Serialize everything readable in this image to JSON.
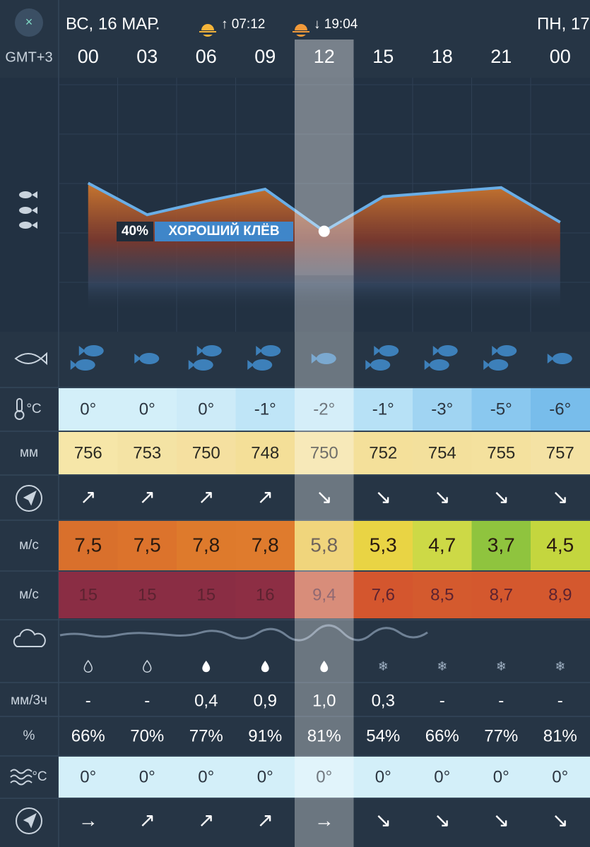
{
  "header": {
    "close": "×",
    "day": "ВС, 16 МАР.",
    "sunrise": "↑ 07:12",
    "sunset": "↓ 19:04",
    "next_day": "ПН, 17",
    "timezone": "GMT+3",
    "hours": [
      "00",
      "03",
      "06",
      "09",
      "12",
      "15",
      "18",
      "21",
      "00"
    ]
  },
  "bite": {
    "percent_label": "40%",
    "label": "ХОРОШИЙ КЛЁВ",
    "curve": [
      72,
      51,
      60,
      68,
      40,
      63,
      66,
      69,
      46
    ],
    "fish_counts": [
      2,
      1,
      2,
      2,
      1,
      2,
      2,
      2,
      1
    ]
  },
  "rows": {
    "temperature": {
      "label": "°C",
      "values": [
        "0°",
        "0°",
        "0°",
        "-1°",
        "-2°",
        "-1°",
        "-3°",
        "-5°",
        "-6°"
      ]
    },
    "pressure": {
      "label": "мм",
      "values": [
        "756",
        "753",
        "750",
        "748",
        "750",
        "752",
        "754",
        "755",
        "757"
      ]
    },
    "wind_direction": {
      "values": [
        "↗",
        "↗",
        "↗",
        "↗",
        "↘",
        "↘",
        "↘",
        "↘",
        "↘"
      ]
    },
    "wind": {
      "label": "м/с",
      "values": [
        "7,5",
        "7,5",
        "7,8",
        "7,8",
        "5,8",
        "5,3",
        "4,7",
        "3,7",
        "4,5"
      ]
    },
    "gust": {
      "label": "м/с",
      "values": [
        "15",
        "15",
        "15",
        "16",
        "9,4",
        "7,6",
        "8,5",
        "8,7",
        "8,9"
      ]
    },
    "precipitation": {
      "label": "мм/3ч",
      "values": [
        "-",
        "-",
        "0,4",
        "0,9",
        "1,0",
        "0,3",
        "-",
        "-",
        "-"
      ]
    },
    "humidity": {
      "label": "%",
      "values": [
        "66%",
        "70%",
        "77%",
        "91%",
        "81%",
        "54%",
        "66%",
        "77%",
        "81%"
      ]
    },
    "water_temperature": {
      "label": "°C",
      "values": [
        "0°",
        "0°",
        "0°",
        "0°",
        "0°",
        "0°",
        "0°",
        "0°",
        "0°"
      ]
    },
    "current_direction": {
      "values": [
        "→",
        "↗",
        "↗",
        "↗",
        "→",
        "↘",
        "↘",
        "↘",
        "↘"
      ]
    }
  }
}
